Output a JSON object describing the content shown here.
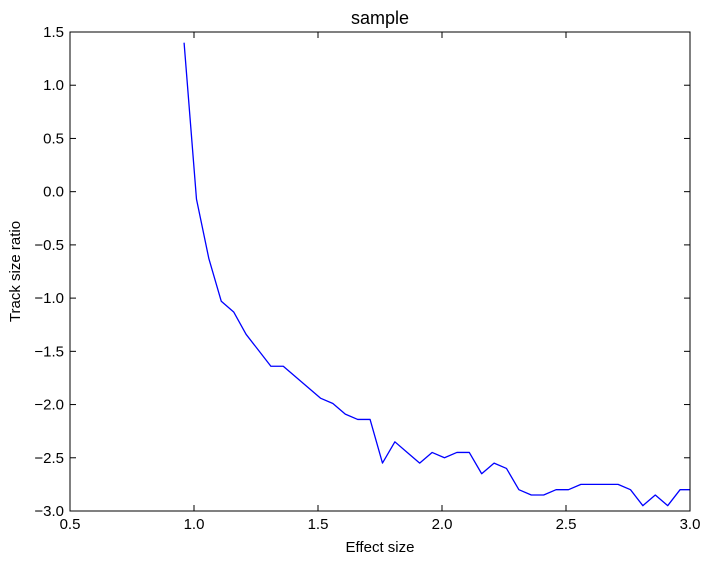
{
  "chart_data": {
    "type": "line",
    "title": "sample",
    "xlabel": "Effect size",
    "ylabel": "Track size ratio",
    "xlim": [
      0.5,
      3.0
    ],
    "ylim": [
      -3.0,
      1.5
    ],
    "xticks": [
      "0.5",
      "1.0",
      "1.5",
      "2.0",
      "2.5",
      "3.0"
    ],
    "yticks": [
      "1.5",
      "1.0",
      "0.5",
      "0.0",
      "−0.5",
      "−1.0",
      "−1.5",
      "−2.0",
      "−2.5",
      "−3.0"
    ],
    "xtick_values": [
      0.5,
      1.0,
      1.5,
      2.0,
      2.5,
      3.0
    ],
    "ytick_values": [
      1.5,
      1.0,
      0.5,
      0.0,
      -0.5,
      -1.0,
      -1.5,
      -2.0,
      -2.5,
      -3.0
    ],
    "grid": false,
    "line_color": "#0000ff",
    "series": [
      {
        "x": [
          0.96,
          1.01,
          1.06,
          1.11,
          1.16,
          1.21,
          1.26,
          1.31,
          1.36,
          1.41,
          1.46,
          1.51,
          1.56,
          1.61,
          1.66,
          1.71,
          1.76,
          1.81,
          1.86,
          1.91,
          1.96,
          2.01,
          2.06,
          2.11,
          2.16,
          2.21,
          2.26,
          2.31,
          2.36,
          2.41,
          2.46,
          2.51,
          2.56,
          2.61,
          2.66,
          2.71,
          2.76,
          2.81,
          2.86,
          2.91,
          2.96,
          3.0
        ],
        "values": [
          1.4,
          -0.07,
          -0.63,
          -1.03,
          -1.13,
          -1.34,
          -1.49,
          -1.64,
          -1.64,
          -1.74,
          -1.84,
          -1.94,
          -1.99,
          -2.09,
          -2.14,
          -2.14,
          -2.55,
          -2.35,
          -2.45,
          -2.55,
          -2.45,
          -2.5,
          -2.45,
          -2.45,
          -2.65,
          -2.55,
          -2.6,
          -2.8,
          -2.85,
          -2.85,
          -2.8,
          -2.8,
          -2.75,
          -2.75,
          -2.75,
          -2.75,
          -2.8,
          -2.95,
          -2.85,
          -2.95,
          -2.8,
          -2.8
        ]
      }
    ]
  }
}
